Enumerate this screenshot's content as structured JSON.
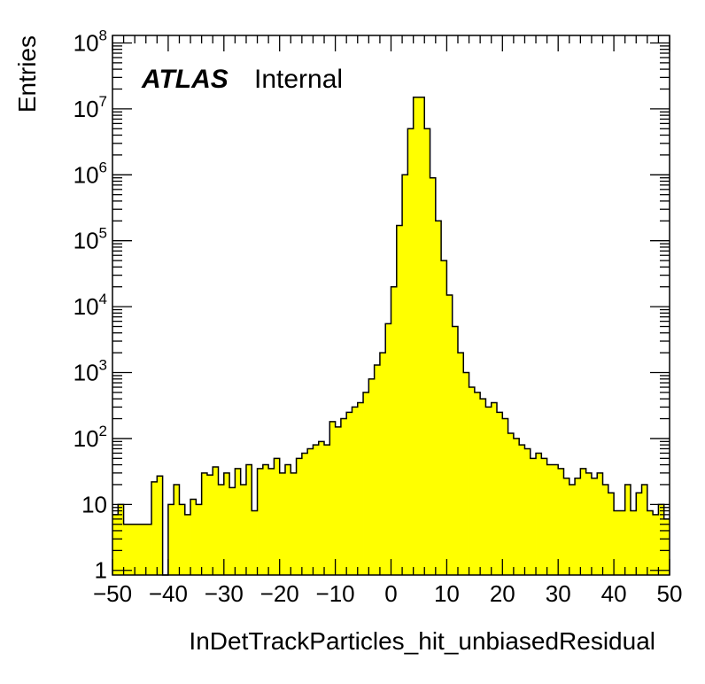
{
  "chart_data": {
    "type": "bar",
    "xlabel": "InDetTrackParticles_hit_unbiasedResidual",
    "ylabel": "Entries",
    "label_atlas": "ATLAS",
    "label_status": "Internal",
    "xlim": [
      -50,
      50
    ],
    "ylim": [
      0.85,
      130000000
    ],
    "y_scale": "log",
    "x_ticks": [
      -50,
      -40,
      -30,
      -20,
      -10,
      0,
      10,
      20,
      30,
      40,
      50
    ],
    "x_tick_labels": [
      "−50",
      "−40",
      "−30",
      "−20",
      "−10",
      "0",
      "10",
      "20",
      "30",
      "40",
      "50"
    ],
    "y_major_ticks": [
      {
        "value": 1,
        "base": "1",
        "exp": ""
      },
      {
        "value": 10,
        "base": "10",
        "exp": ""
      },
      {
        "value": 100,
        "base": "10",
        "exp": "2"
      },
      {
        "value": 1000,
        "base": "10",
        "exp": "3"
      },
      {
        "value": 10000,
        "base": "10",
        "exp": "4"
      },
      {
        "value": 100000,
        "base": "10",
        "exp": "5"
      },
      {
        "value": 1000000,
        "base": "10",
        "exp": "6"
      },
      {
        "value": 10000000,
        "base": "10",
        "exp": "7"
      },
      {
        "value": 100000000,
        "base": "10",
        "exp": "8"
      }
    ],
    "fill_color": "#ffff00",
    "line_color": "#000000",
    "bin_edges_start": -50,
    "bin_width": 1,
    "values": [
      7,
      10,
      5,
      5,
      5,
      5,
      5,
      22,
      27,
      0,
      10,
      20,
      10,
      7,
      12,
      10,
      30,
      28,
      37,
      20,
      30,
      18,
      35,
      20,
      40,
      8,
      35,
      40,
      35,
      50,
      30,
      40,
      30,
      50,
      60,
      70,
      80,
      90,
      80,
      180,
      150,
      200,
      250,
      300,
      350,
      500,
      800,
      1300,
      2000,
      5500,
      20000,
      170000,
      1000000,
      5000000,
      15000000,
      15000000,
      5000000,
      900000,
      200000,
      50000,
      15000,
      5000,
      2000,
      1000,
      600,
      500,
      400,
      300,
      350,
      250,
      200,
      120,
      100,
      80,
      70,
      50,
      60,
      50,
      40,
      40,
      35,
      25,
      20,
      25,
      35,
      30,
      25,
      30,
      20,
      15,
      8,
      8,
      20,
      8,
      15,
      20,
      8,
      7,
      10,
      6
    ]
  }
}
